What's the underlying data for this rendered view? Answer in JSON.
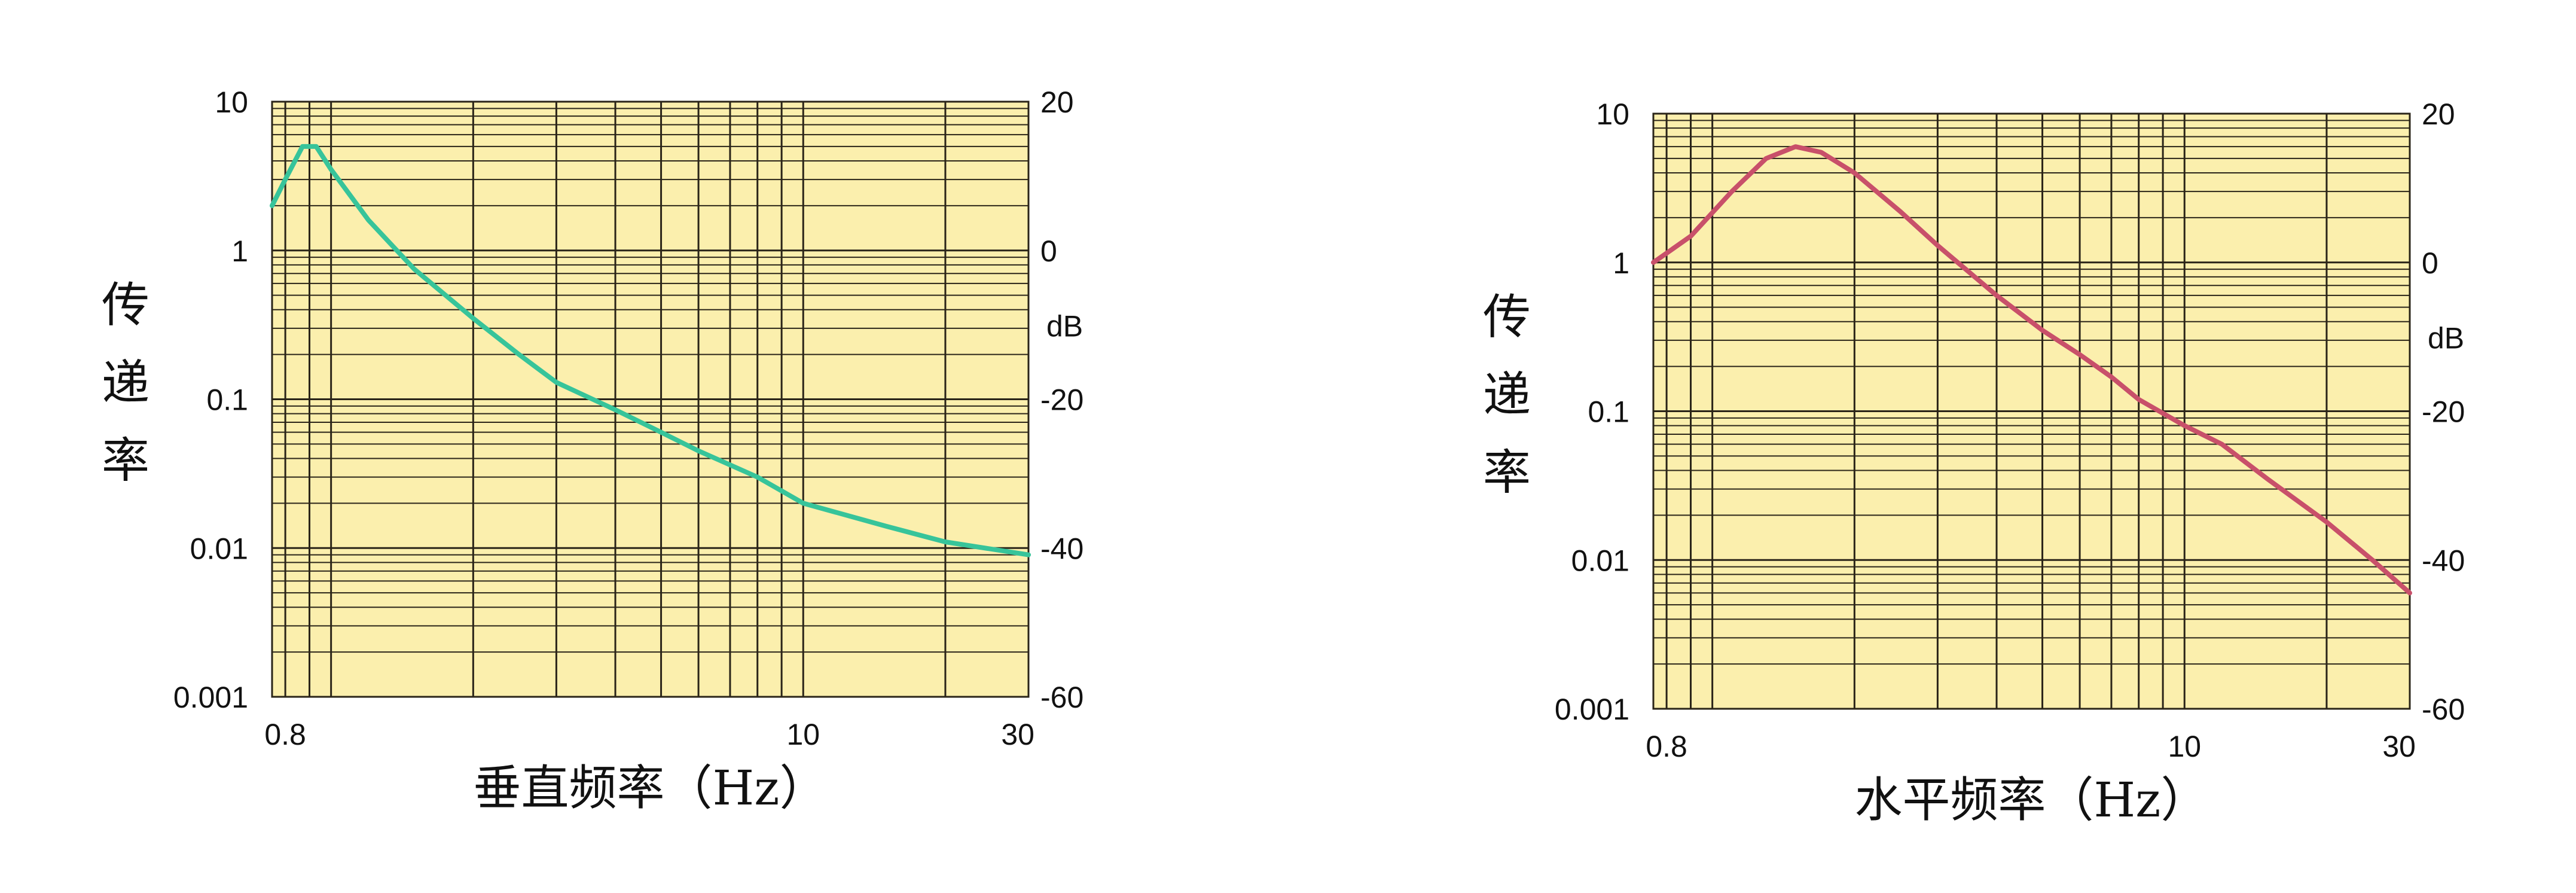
{
  "chart_data": [
    {
      "type": "line",
      "title": "",
      "xlabel": "垂直频率（Hz）",
      "ylabel": "传递率",
      "y2label": "dB",
      "xscale": "log",
      "yscale": "log",
      "xlim": [
        0.75,
        30
      ],
      "ylim": [
        0.001,
        10
      ],
      "xticks": [
        0.8,
        10,
        30
      ],
      "xtick_labels": [
        "0.8",
        "10",
        "30"
      ],
      "yticks": [
        10,
        1,
        0.1,
        0.01,
        0.001
      ],
      "ytick_labels": [
        "10",
        "1",
        "0.1",
        "0.01",
        "0.001"
      ],
      "y2ticks": [
        20,
        0,
        -20,
        -40,
        -60
      ],
      "y2tick_labels": [
        "20",
        "0",
        "-20",
        "-40",
        "-60"
      ],
      "grid": true,
      "background": "#fbefad",
      "series": [
        {
          "color": "#37c49a",
          "x": [
            0.75,
            0.8,
            0.87,
            0.93,
            1.0,
            1.2,
            1.5,
            2.0,
            2.5,
            3.0,
            4.0,
            5.0,
            6.0,
            8.0,
            10.0,
            15.0,
            20.0,
            30.0
          ],
          "y": [
            2.0,
            3.0,
            5.0,
            5.0,
            3.5,
            1.6,
            0.75,
            0.35,
            0.2,
            0.13,
            0.085,
            0.06,
            0.045,
            0.03,
            0.02,
            0.014,
            0.011,
            0.009
          ]
        }
      ]
    },
    {
      "type": "line",
      "title": "",
      "xlabel": "水平频率（Hz）",
      "ylabel": "传递率",
      "y2label": "dB",
      "xscale": "log",
      "yscale": "log",
      "xlim": [
        0.75,
        30
      ],
      "ylim": [
        0.001,
        10
      ],
      "xticks": [
        0.8,
        10,
        30
      ],
      "xtick_labels": [
        "0.8",
        "10",
        "30"
      ],
      "yticks": [
        10,
        1,
        0.1,
        0.01,
        0.001
      ],
      "ytick_labels": [
        "10",
        "1",
        "0.1",
        "0.01",
        "0.001"
      ],
      "y2ticks": [
        20,
        0,
        -20,
        -40,
        -60
      ],
      "y2tick_labels": [
        "20",
        "0",
        "-20",
        "-40",
        "-60"
      ],
      "grid": true,
      "background": "#fbefad",
      "series": [
        {
          "color": "#c8506a",
          "x": [
            0.75,
            0.9,
            1.1,
            1.3,
            1.5,
            1.7,
            2.0,
            2.5,
            3.0,
            4.0,
            5.0,
            6.0,
            7.0,
            8.0,
            10.0,
            12.0,
            15.0,
            20.0,
            25.0,
            30.0
          ],
          "y": [
            1.0,
            1.5,
            3.0,
            5.0,
            6.0,
            5.5,
            4.0,
            2.2,
            1.3,
            0.6,
            0.35,
            0.24,
            0.17,
            0.12,
            0.08,
            0.06,
            0.035,
            0.018,
            0.01,
            0.006
          ]
        }
      ]
    }
  ]
}
